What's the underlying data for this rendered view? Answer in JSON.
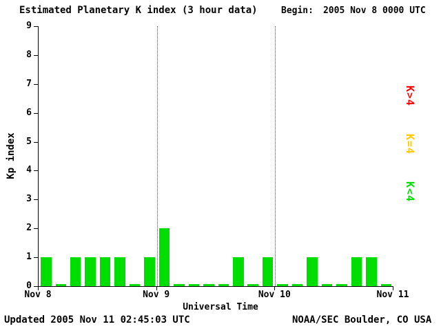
{
  "header": {
    "begin_label": "Begin:",
    "begin_value": "2005 Nov 8 0000 UTC"
  },
  "footer": {
    "updated": "Updated 2005 Nov 11 02:45:03 UTC",
    "source": "NOAA/SEC Boulder, CO USA"
  },
  "legend": [
    {
      "label": "K>4",
      "color": "#ff0000"
    },
    {
      "label": "K=4",
      "color": "#ffc800"
    },
    {
      "label": "K<4",
      "color": "#00dd00"
    }
  ],
  "colors": {
    "bar": "#00dd00",
    "axis": "#000000",
    "gridline": "#444444"
  },
  "chart_data": {
    "type": "bar",
    "title": "Estimated Planetary K index (3 hour data)",
    "xlabel": "Universal Time",
    "ylabel": "Kp index",
    "ylim": [
      0,
      9
    ],
    "y_ticks": [
      0,
      1,
      2,
      3,
      4,
      5,
      6,
      7,
      8,
      9
    ],
    "x_tick_labels": [
      "Nov 8",
      "Nov 9",
      "Nov 10",
      "Nov 11"
    ],
    "bin_hours": 3,
    "grid": "dotted vertical lines at interior day boundaries",
    "gridline_tick_indexes": [
      1,
      2
    ],
    "values": [
      1,
      0,
      1,
      1,
      1,
      1,
      0,
      1,
      2,
      0,
      0,
      0,
      0,
      1,
      0,
      1,
      0,
      0,
      1,
      0,
      0,
      1,
      1,
      0
    ]
  }
}
